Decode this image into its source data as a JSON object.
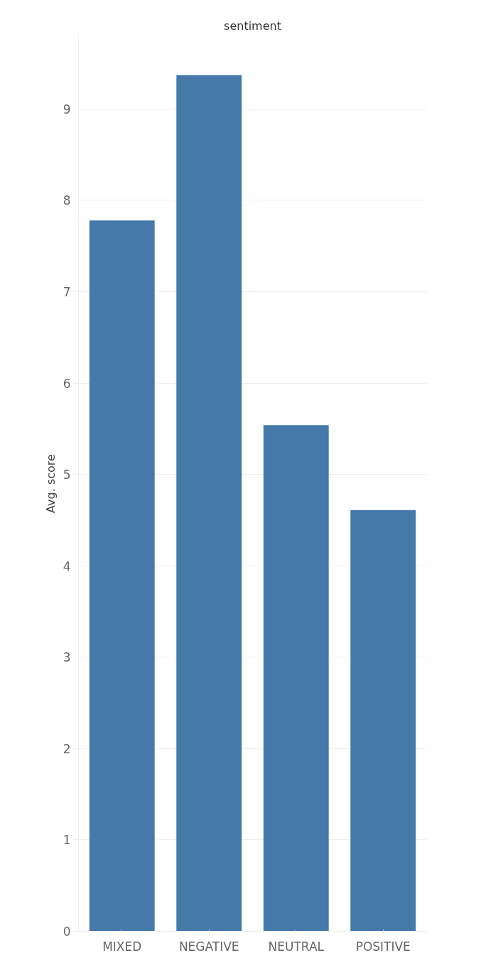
{
  "chart_data": {
    "type": "bar",
    "title": "sentiment",
    "ylabel": "Avg. score",
    "categories": [
      "MIXED",
      "NEGATIVE",
      "NEUTRAL",
      "POSITIVE"
    ],
    "values": [
      7.78,
      9.37,
      5.54,
      4.61
    ],
    "color": "#4479aa",
    "ylim": [
      0,
      9.8
    ],
    "yticks": [
      0,
      1,
      2,
      3,
      4,
      5,
      6,
      7,
      8,
      9
    ],
    "grid": "y"
  }
}
